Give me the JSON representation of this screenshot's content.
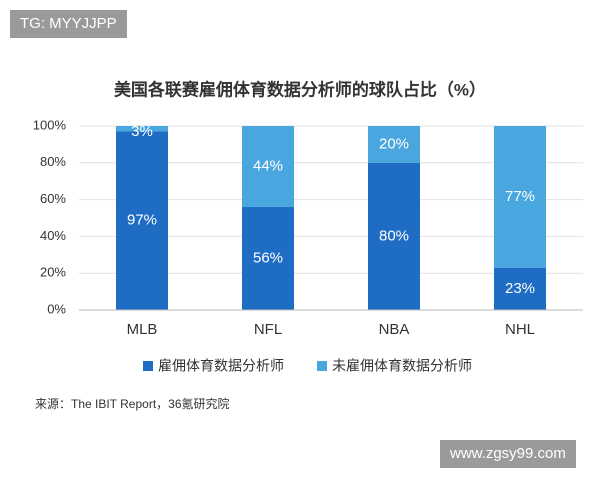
{
  "badge": "TG: MYYJJPP",
  "site": "www.zgsy99.com",
  "chart_data": {
    "type": "stacked_bar",
    "title": "美国各联赛雇佣体育数据分析师的球队占比（%）",
    "categories": [
      "MLB",
      "NFL",
      "NBA",
      "NHL"
    ],
    "series": [
      {
        "name": "雇佣体育数据分析师",
        "color": "#1f6cc4",
        "values": [
          97,
          56,
          80,
          23
        ],
        "value_labels": [
          "97%",
          "56%",
          "80%",
          "23%"
        ]
      },
      {
        "name": "未雇佣体育数据分析师",
        "color": "#4aa6df",
        "values": [
          3,
          44,
          20,
          77
        ],
        "value_labels": [
          "3%",
          "44%",
          "20%",
          "77%"
        ]
      }
    ],
    "ylim": [
      0,
      100
    ],
    "yticks": [
      {
        "value": 0,
        "label": "0%"
      },
      {
        "value": 20,
        "label": "20%"
      },
      {
        "value": 40,
        "label": "40%"
      },
      {
        "value": 60,
        "label": "60%"
      },
      {
        "value": 80,
        "label": "80%"
      },
      {
        "value": 100,
        "label": "100%"
      }
    ],
    "grid": true,
    "source": "来源：The IBIT Report，36氪研究院"
  }
}
